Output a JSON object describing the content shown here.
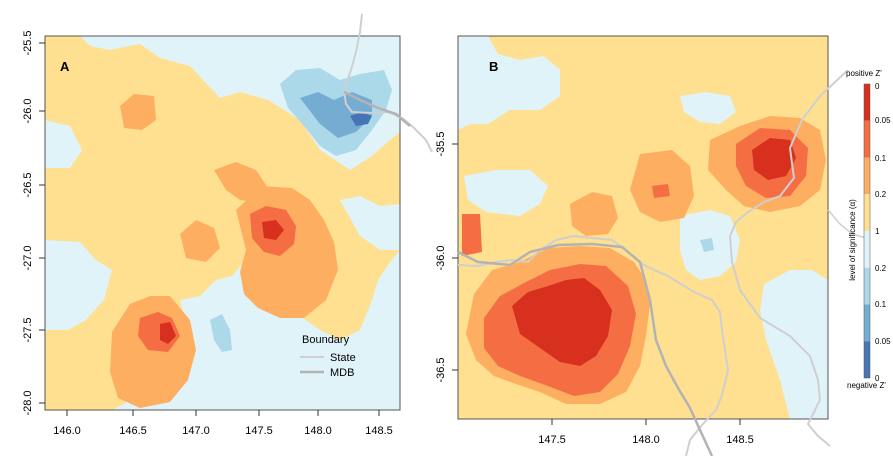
{
  "panels": [
    {
      "label": "A",
      "x_ticks": [
        "146.0",
        "146.5",
        "147.0",
        "147.5",
        "148.0",
        "148.5"
      ],
      "y_ticks": [
        "-25.5",
        "-26.0",
        "-26.5",
        "-27.0",
        "-27.5",
        "-28.0"
      ]
    },
    {
      "label": "B",
      "x_ticks": [
        "147.5",
        "148.0",
        "148.5"
      ],
      "y_ticks": [
        "-35.5",
        "-36.0",
        "-36.5"
      ]
    }
  ],
  "legend": {
    "title": "Boundary",
    "items": [
      {
        "label": "State",
        "color": "#cfcfcf"
      },
      {
        "label": "MDB",
        "color": "#b3b3b3"
      }
    ]
  },
  "colorbar": {
    "top_label": "positive Z'",
    "bottom_label": "negative Z'",
    "axis_label": "level of significance (α)",
    "ticks": [
      "0",
      "0.05",
      "0.1",
      "0.2",
      "1",
      "0.2",
      "0.1",
      "0.05",
      "0"
    ],
    "colors": [
      "#d7301f",
      "#f46d43",
      "#fdae61",
      "#fee090",
      "#e0f3f8",
      "#abd9e9",
      "#74add1",
      "#4575b4"
    ]
  },
  "palette": {
    "neutral_pos": "#fee090",
    "neutral_neg": "#e0f3f8",
    "pos_02": "#fdae61",
    "pos_01": "#f46d43",
    "pos_005": "#d7301f",
    "neg_02": "#abd9e9",
    "neg_01": "#74add1",
    "neg_005": "#4575b4"
  }
}
